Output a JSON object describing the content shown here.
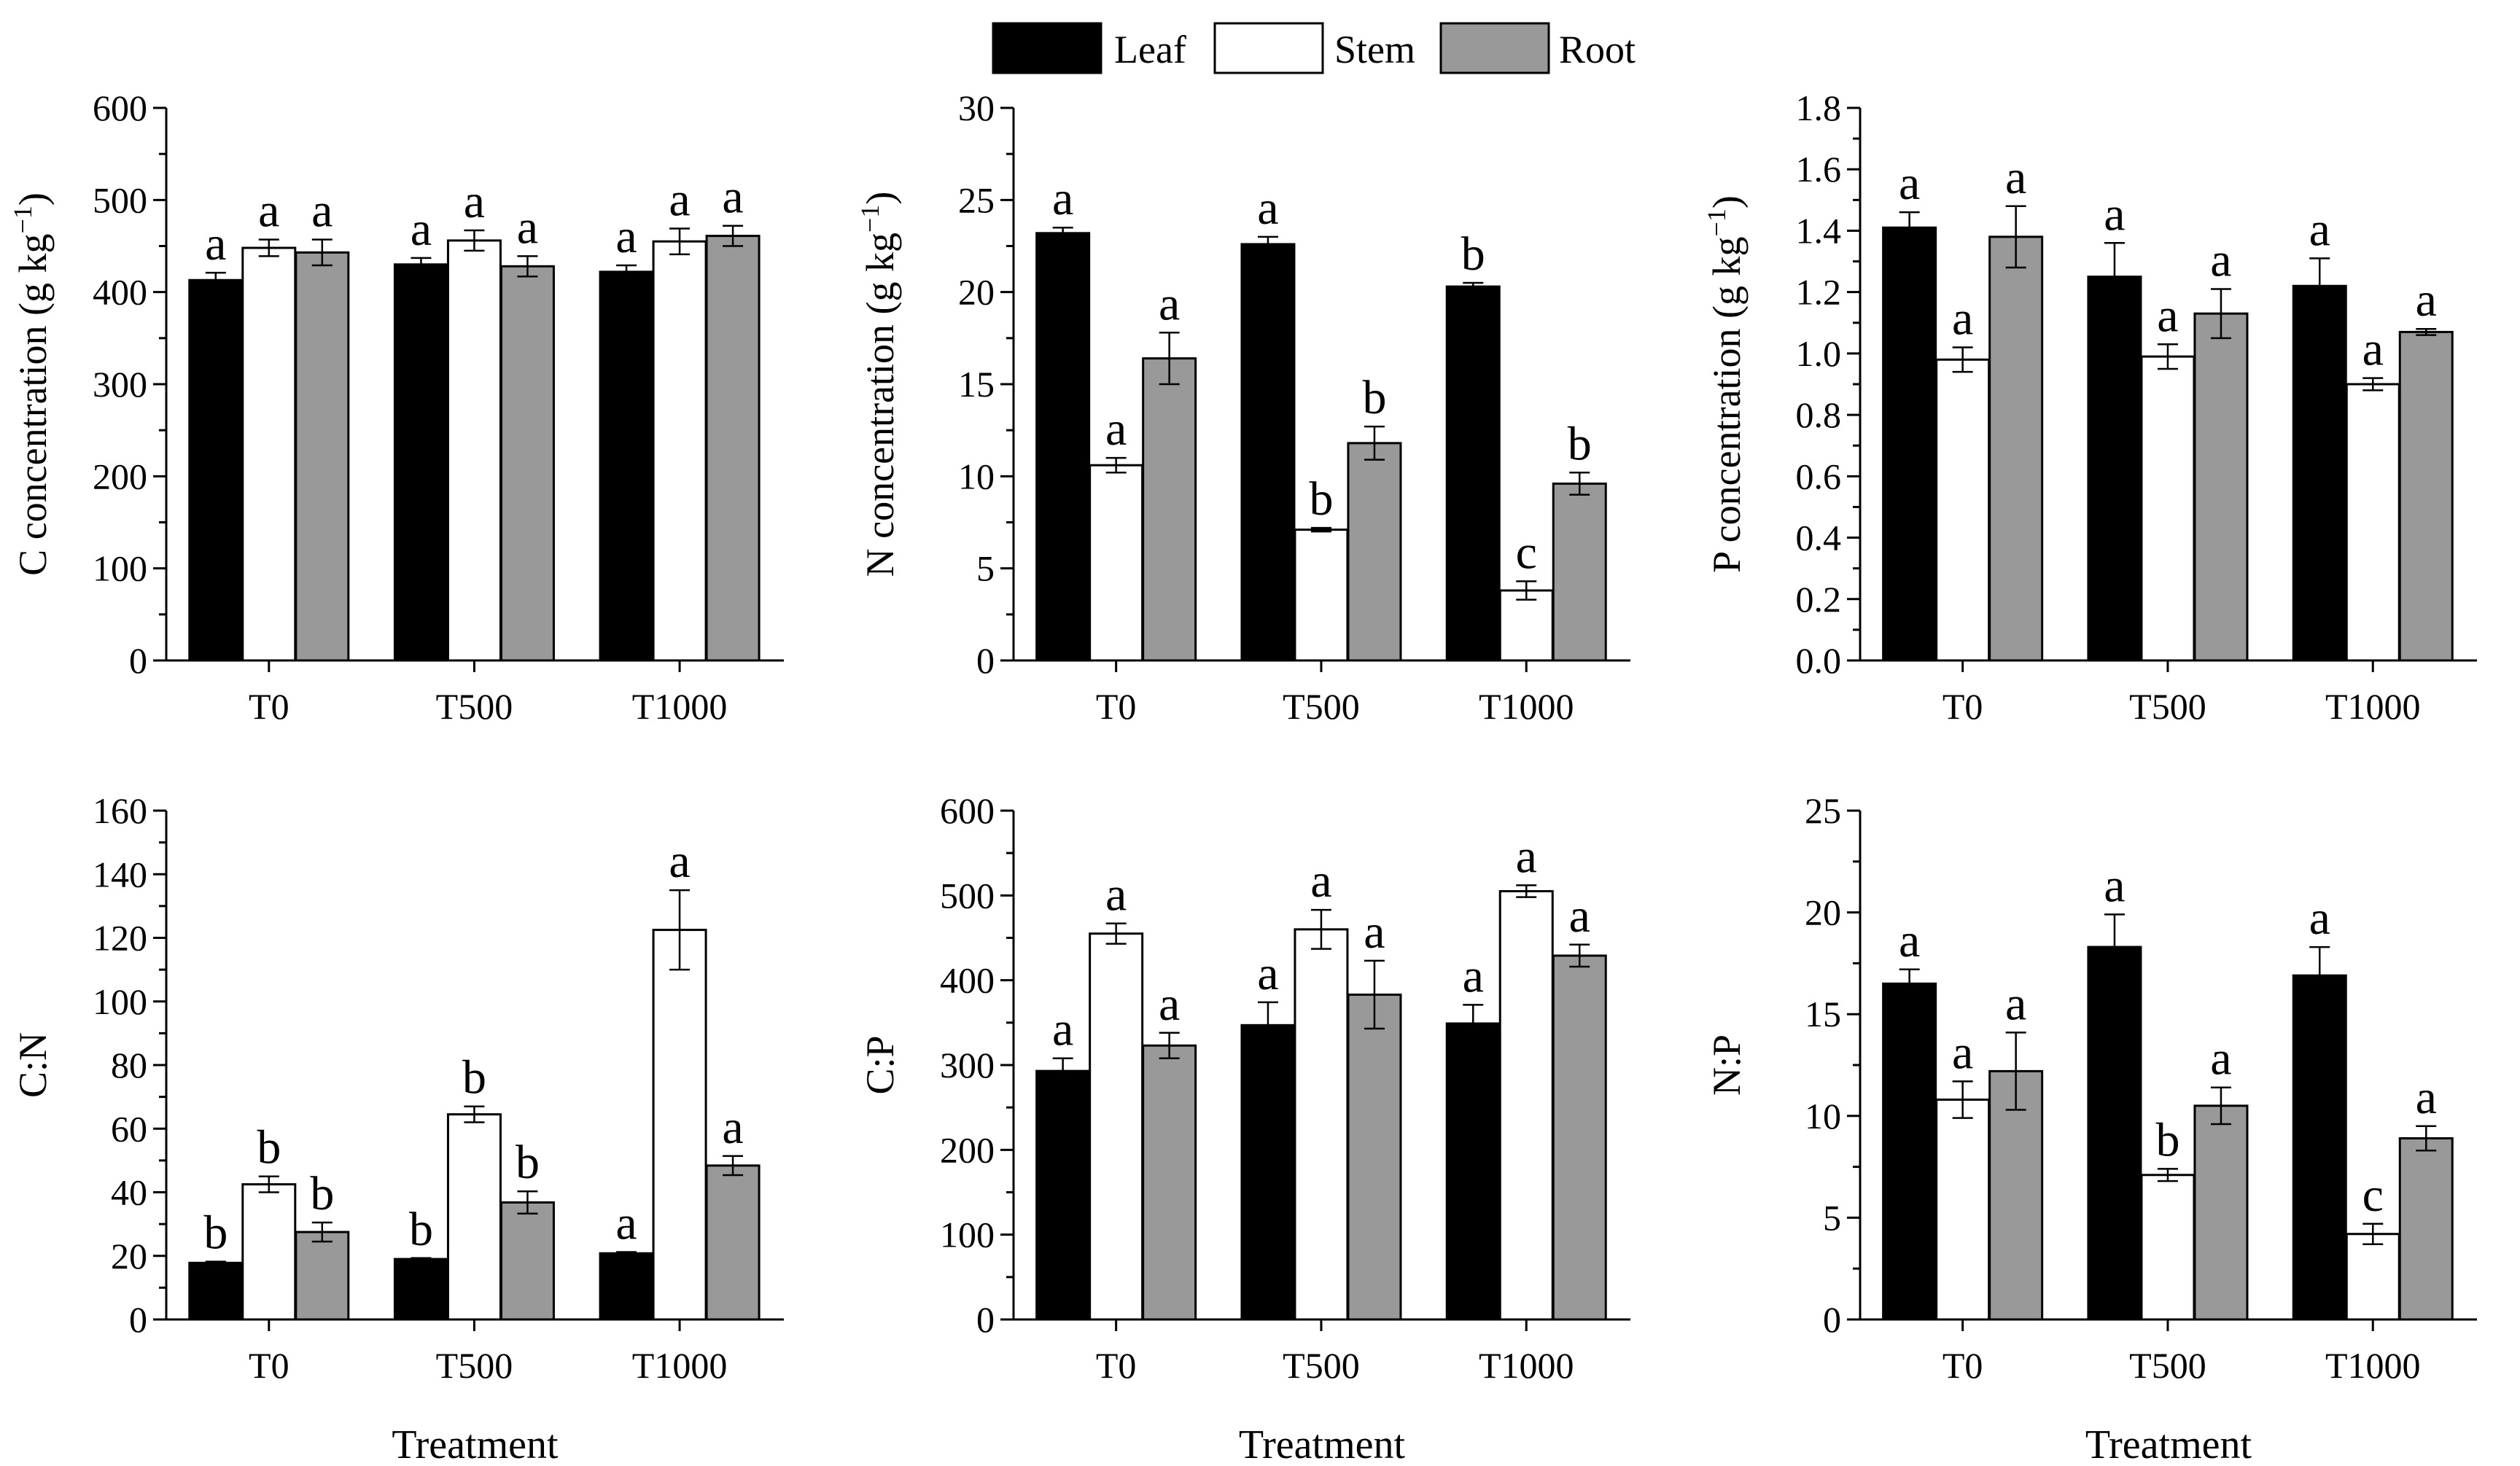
{
  "legend": {
    "items": [
      {
        "label": "Leaf",
        "color": "#000000"
      },
      {
        "label": "Stem",
        "color": "#ffffff"
      },
      {
        "label": "Root",
        "color": "#999999"
      }
    ]
  },
  "colors": {
    "leaf": "#000000",
    "stem": "#ffffff",
    "root": "#999999",
    "axis": "#000000"
  },
  "chart_data": [
    {
      "type": "bar",
      "ylabel": "C concentration (g kg",
      "ylabel_sup": "−1",
      "ylabel_close": ")",
      "xlabel": "",
      "categories": [
        "T0",
        "T500",
        "T1000"
      ],
      "ylim": [
        0,
        600
      ],
      "yticks": [
        0,
        100,
        200,
        300,
        400,
        500,
        600
      ],
      "ytick_labels": [
        "0",
        "100",
        "200",
        "300",
        "400",
        "500",
        "600"
      ],
      "series": [
        {
          "name": "Leaf",
          "values": [
            413,
            430,
            422
          ],
          "errors": [
            8,
            7,
            7
          ],
          "letters": [
            "a",
            "a",
            "a"
          ]
        },
        {
          "name": "Stem",
          "values": [
            448,
            456,
            455
          ],
          "errors": [
            9,
            11,
            14
          ],
          "letters": [
            "a",
            "a",
            "a"
          ]
        },
        {
          "name": "Root",
          "values": [
            443,
            428,
            461
          ],
          "errors": [
            14,
            11,
            11
          ],
          "letters": [
            "a",
            "a",
            "a"
          ]
        }
      ]
    },
    {
      "type": "bar",
      "ylabel": "N concentration (g kg",
      "ylabel_sup": "−1",
      "ylabel_close": ")",
      "xlabel": "",
      "categories": [
        "T0",
        "T500",
        "T1000"
      ],
      "ylim": [
        0,
        30
      ],
      "yticks": [
        0,
        5,
        10,
        15,
        20,
        25,
        30
      ],
      "ytick_labels": [
        "0",
        "5",
        "10",
        "15",
        "20",
        "25",
        "30"
      ],
      "series": [
        {
          "name": "Leaf",
          "values": [
            23.2,
            22.6,
            20.3
          ],
          "errors": [
            0.3,
            0.4,
            0.2
          ],
          "letters": [
            "a",
            "a",
            "b"
          ]
        },
        {
          "name": "Stem",
          "values": [
            10.6,
            7.1,
            3.8
          ],
          "errors": [
            0.4,
            0.1,
            0.5
          ],
          "letters": [
            "a",
            "b",
            "c"
          ]
        },
        {
          "name": "Root",
          "values": [
            16.4,
            11.8,
            9.6
          ],
          "errors": [
            1.4,
            0.9,
            0.6
          ],
          "letters": [
            "a",
            "b",
            "b"
          ]
        }
      ]
    },
    {
      "type": "bar",
      "ylabel": "P concentration (g kg",
      "ylabel_sup": "−1",
      "ylabel_close": ")",
      "xlabel": "",
      "categories": [
        "T0",
        "T500",
        "T1000"
      ],
      "ylim": [
        0,
        1.8
      ],
      "yticks": [
        0,
        0.2,
        0.4,
        0.6,
        0.8,
        1.0,
        1.2,
        1.4,
        1.6,
        1.8
      ],
      "ytick_labels": [
        "0.0",
        "0.2",
        "0.4",
        "0.6",
        "0.8",
        "1.0",
        "1.2",
        "1.4",
        "1.6",
        "1.8"
      ],
      "series": [
        {
          "name": "Leaf",
          "values": [
            1.41,
            1.25,
            1.22
          ],
          "errors": [
            0.05,
            0.11,
            0.09
          ],
          "letters": [
            "a",
            "a",
            "a"
          ]
        },
        {
          "name": "Stem",
          "values": [
            0.98,
            0.99,
            0.9
          ],
          "errors": [
            0.04,
            0.04,
            0.02
          ],
          "letters": [
            "a",
            "a",
            "a"
          ]
        },
        {
          "name": "Root",
          "values": [
            1.38,
            1.13,
            1.07
          ],
          "errors": [
            0.1,
            0.08,
            0.01
          ],
          "letters": [
            "a",
            "a",
            "a"
          ]
        }
      ]
    },
    {
      "type": "bar",
      "ylabel": "C:N",
      "ylabel_sup": "",
      "ylabel_close": "",
      "xlabel": "Treatment",
      "categories": [
        "T0",
        "T500",
        "T1000"
      ],
      "ylim": [
        0,
        160
      ],
      "yticks": [
        0,
        20,
        40,
        60,
        80,
        100,
        120,
        140,
        160
      ],
      "ytick_labels": [
        "0",
        "20",
        "40",
        "60",
        "80",
        "100",
        "120",
        "140",
        "160"
      ],
      "series": [
        {
          "name": "Leaf",
          "values": [
            17.8,
            19.0,
            20.8
          ],
          "errors": [
            0.4,
            0.3,
            0.4
          ],
          "letters": [
            "b",
            "b",
            "a"
          ]
        },
        {
          "name": "Stem",
          "values": [
            42.5,
            64.5,
            122.5
          ],
          "errors": [
            2.5,
            2.5,
            12.5
          ],
          "letters": [
            "b",
            "b",
            "a"
          ]
        },
        {
          "name": "Root",
          "values": [
            27.5,
            36.8,
            48.4
          ],
          "errors": [
            3.0,
            3.5,
            3.0
          ],
          "letters": [
            "b",
            "b",
            "a"
          ]
        }
      ]
    },
    {
      "type": "bar",
      "ylabel": "C:P",
      "ylabel_sup": "",
      "ylabel_close": "",
      "xlabel": "Treatment",
      "categories": [
        "T0",
        "T500",
        "T1000"
      ],
      "ylim": [
        0,
        600
      ],
      "yticks": [
        0,
        100,
        200,
        300,
        400,
        500,
        600
      ],
      "ytick_labels": [
        "0",
        "100",
        "200",
        "300",
        "400",
        "500",
        "600"
      ],
      "series": [
        {
          "name": "Leaf",
          "values": [
            293,
            347,
            349
          ],
          "errors": [
            15,
            27,
            22
          ],
          "letters": [
            "a",
            "a",
            "a"
          ]
        },
        {
          "name": "Stem",
          "values": [
            455,
            460,
            505
          ],
          "errors": [
            12,
            23,
            7
          ],
          "letters": [
            "a",
            "a",
            "a"
          ]
        },
        {
          "name": "Root",
          "values": [
            323,
            383,
            429
          ],
          "errors": [
            15,
            40,
            13
          ],
          "letters": [
            "a",
            "a",
            "a"
          ]
        }
      ]
    },
    {
      "type": "bar",
      "ylabel": "N:P",
      "ylabel_sup": "",
      "ylabel_close": "",
      "xlabel": "Treatment",
      "categories": [
        "T0",
        "T500",
        "T1000"
      ],
      "ylim": [
        0,
        25
      ],
      "yticks": [
        0,
        5,
        10,
        15,
        20,
        25
      ],
      "ytick_labels": [
        "0",
        "5",
        "10",
        "15",
        "20",
        "25"
      ],
      "series": [
        {
          "name": "Leaf",
          "values": [
            16.5,
            18.3,
            16.9
          ],
          "errors": [
            0.7,
            1.6,
            1.4
          ],
          "letters": [
            "a",
            "a",
            "a"
          ]
        },
        {
          "name": "Stem",
          "values": [
            10.8,
            7.1,
            4.2
          ],
          "errors": [
            0.9,
            0.3,
            0.5
          ],
          "letters": [
            "a",
            "b",
            "c"
          ]
        },
        {
          "name": "Root",
          "values": [
            12.2,
            10.5,
            8.9
          ],
          "errors": [
            1.9,
            0.9,
            0.6
          ],
          "letters": [
            "a",
            "a",
            "a"
          ]
        }
      ]
    }
  ]
}
